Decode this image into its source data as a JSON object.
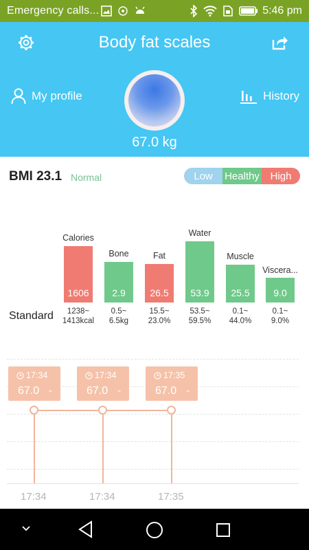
{
  "status_bar": {
    "notification_text": "Emergency calls...",
    "time": "5:46 pm"
  },
  "header": {
    "title": "Body fat scales",
    "profile_label": "My profile",
    "history_label": "History",
    "weight": "67.0 kg"
  },
  "bmi": {
    "label": "BMI 23.1",
    "status": "Normal",
    "scale": {
      "low": "Low",
      "healthy": "Healthy",
      "high": "High"
    }
  },
  "metrics": [
    {
      "name": "Calories",
      "value": "1606",
      "standard": [
        "1238~",
        "1413kcal"
      ],
      "color": "#f07b72"
    },
    {
      "name": "Bone",
      "value": "2.9",
      "standard": [
        "0.5~",
        "6.5kg"
      ],
      "color": "#6fc98a"
    },
    {
      "name": "Fat",
      "value": "26.5",
      "standard": [
        "15.5~",
        "23.0%"
      ],
      "color": "#f07b72"
    },
    {
      "name": "Water",
      "value": "53.9",
      "standard": [
        "53.5~",
        "59.5%"
      ],
      "color": "#6fc98a"
    },
    {
      "name": "Muscle",
      "value": "25.5",
      "standard": [
        "0.1~",
        "44.0%"
      ],
      "color": "#6fc98a"
    },
    {
      "name": "Viscera...",
      "value": "9.0",
      "standard": [
        "0.1~",
        "9.0%"
      ],
      "color": "#6fc98a"
    }
  ],
  "standard_label": "Standard",
  "timeline": {
    "entries": [
      {
        "time": "17:34",
        "value": "67.0",
        "dash": "-"
      },
      {
        "time": "17:34",
        "value": "67.0",
        "dash": "-"
      },
      {
        "time": "17:35",
        "value": "67.0",
        "dash": "-"
      }
    ],
    "x_ticks": [
      "17:34",
      "17:34",
      "17:35"
    ]
  },
  "colors": {
    "header": "#45c6f3",
    "status_bar": "#7aa326",
    "accent": "#f5c2a9"
  }
}
